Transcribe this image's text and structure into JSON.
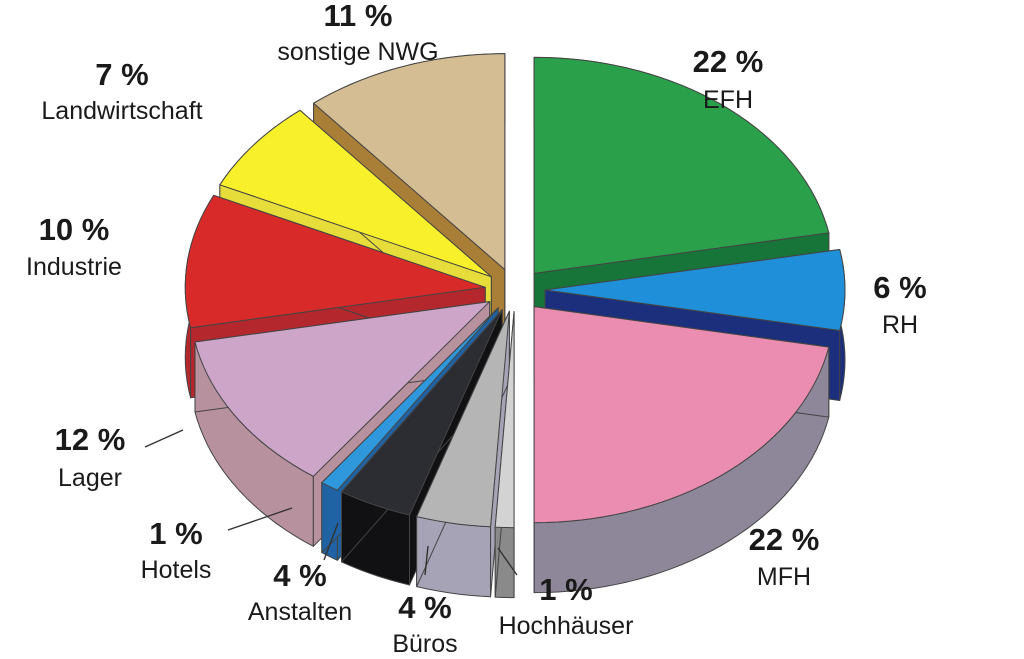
{
  "chart_data": {
    "type": "pie",
    "title": "",
    "unit": "%",
    "slices": [
      {
        "label": "EFH",
        "value": 22,
        "value_text": "22 %",
        "color": "#2aa04a",
        "side_color": "#17753a"
      },
      {
        "label": "RH",
        "value": 6,
        "value_text": "6 %",
        "color": "#1e8fd8",
        "side_color": "#1b2f7c"
      },
      {
        "label": "MFH",
        "value": 22,
        "value_text": "22 %",
        "color": "#ea8db0",
        "side_color": "#8d8799"
      },
      {
        "label": "Hochhäuser",
        "value": 1,
        "value_text": "1 %",
        "color": "#d3d3d3",
        "side_color": "#8a8a8a"
      },
      {
        "label": "Büros",
        "value": 4,
        "value_text": "4 %",
        "color": "#b5b5b5",
        "side_color": "#a7a3b6"
      },
      {
        "label": "Anstalten",
        "value": 4,
        "value_text": "4 %",
        "color": "#2c2c33",
        "side_color": "#111114"
      },
      {
        "label": "Hotels",
        "value": 1,
        "value_text": "1 %",
        "color": "#2f98dc",
        "side_color": "#1f63a4"
      },
      {
        "label": "Lager",
        "value": 12,
        "value_text": "12 %",
        "color": "#cca5c9",
        "side_color": "#b8919e"
      },
      {
        "label": "Industrie",
        "value": 10,
        "value_text": "10 %",
        "color": "#d92a2a",
        "side_color": "#b3272d"
      },
      {
        "label": "Landwirtschaft",
        "value": 7,
        "value_text": "7 %",
        "color": "#f8f02a",
        "side_color": "#e6dc3a"
      },
      {
        "label": "sonstige NWG",
        "value": 11,
        "value_text": "11 %",
        "color": "#d4bd93",
        "side_color": "#a97f38"
      }
    ]
  }
}
